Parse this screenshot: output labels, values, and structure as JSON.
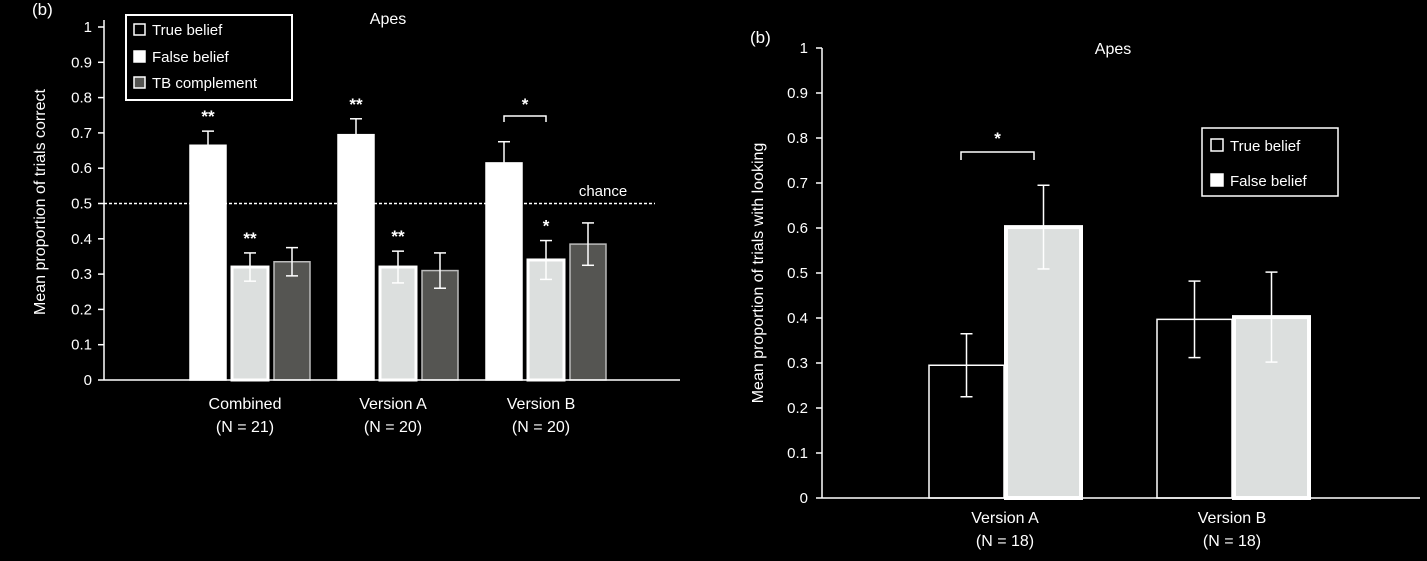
{
  "colors": {
    "background": "#000000",
    "axis": "#ffffff",
    "true_belief_fill": "#ffffff",
    "false_belief_fill": "#dcdfde",
    "tb_complement_fill": "#555552"
  },
  "chart_data": [
    {
      "type": "bar",
      "panel_label": "(b)",
      "title": "Apes",
      "xlabel": "",
      "ylabel": "Mean proportion of trials correct",
      "ylim": [
        0,
        1
      ],
      "yticks": [
        "0",
        "0.1",
        "0.2",
        "0.3",
        "0.4",
        "0.5",
        "0.6",
        "0.7",
        "0.8",
        "0.9",
        "1"
      ],
      "categories": [
        "Combined",
        "Version A",
        "Version B"
      ],
      "category_n": [
        "(N = 21)",
        "(N = 20)",
        "(N = 20)"
      ],
      "legend_position": "top-left",
      "series": [
        {
          "name": "True belief",
          "color": "#ffffff",
          "values": [
            0.665,
            0.695,
            0.615
          ],
          "errors": [
            0.04,
            0.045,
            0.06
          ],
          "stars": [
            "**",
            "**",
            ""
          ]
        },
        {
          "name": "False belief",
          "color": "#dcdfde",
          "values": [
            0.32,
            0.32,
            0.34
          ],
          "errors": [
            0.04,
            0.045,
            0.055
          ],
          "stars": [
            "**",
            "**",
            "*"
          ]
        },
        {
          "name": "TB complement",
          "color": "#555552",
          "values": [
            0.335,
            0.31,
            0.385
          ],
          "errors": [
            0.04,
            0.05,
            0.06
          ],
          "stars": [
            "",
            "",
            ""
          ]
        }
      ],
      "reference_line": {
        "value": 0.5,
        "label": "chance"
      },
      "bracket": {
        "category": 2,
        "label": "*"
      }
    },
    {
      "type": "bar",
      "panel_label": "(b)",
      "title": "Apes",
      "xlabel": "",
      "ylabel": "Mean proportion of trials with looking",
      "ylim": [
        0,
        1
      ],
      "yticks": [
        "0",
        "0.1",
        "0.2",
        "0.3",
        "0.4",
        "0.5",
        "0.6",
        "0.7",
        "0.8",
        "0.9",
        "1"
      ],
      "categories": [
        "Version A",
        "Version B"
      ],
      "category_n": [
        "(N = 18)",
        "(N = 18)"
      ],
      "legend_position": "top-right",
      "series": [
        {
          "name": "True belief",
          "color": "#ffffff",
          "values": [
            0.295,
            0.397
          ],
          "errors": [
            0.07,
            0.085
          ]
        },
        {
          "name": "False belief",
          "color": "#dcdfde",
          "values": [
            0.602,
            0.402
          ],
          "errors": [
            0.093,
            0.1
          ]
        }
      ],
      "bracket": {
        "category": 0,
        "label": "*"
      }
    }
  ]
}
